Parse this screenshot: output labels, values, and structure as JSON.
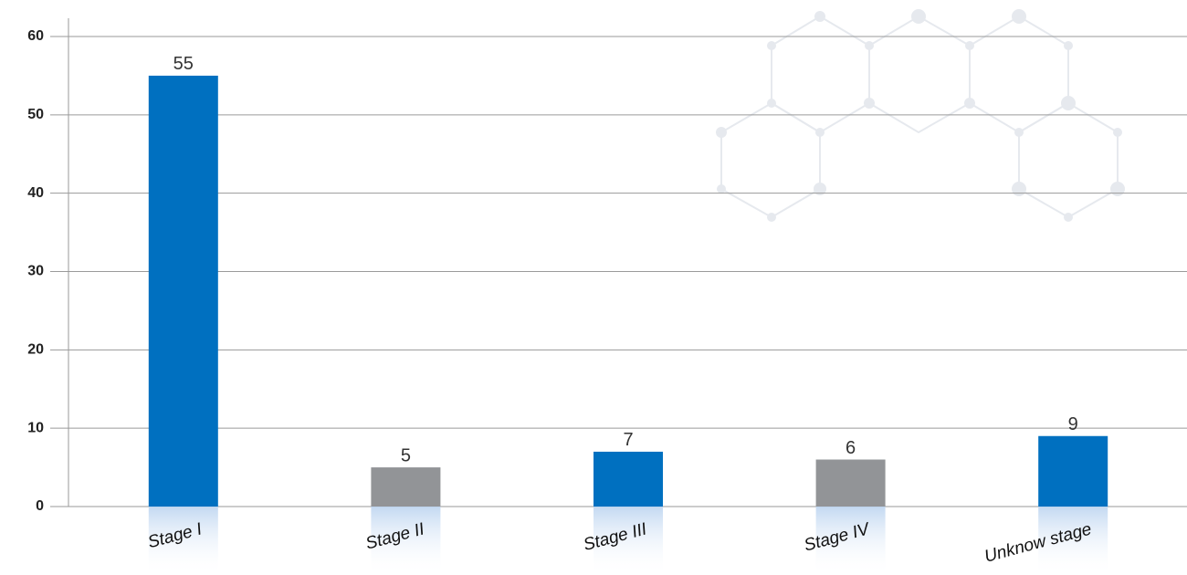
{
  "chart_data": {
    "type": "bar",
    "categories": [
      "Stage I",
      "Stage II",
      "Stage III",
      "Stage IV",
      "Unknow stage"
    ],
    "values": [
      55,
      5,
      7,
      6,
      9
    ],
    "colors": [
      "#0070c0",
      "#929497",
      "#0070c0",
      "#929497",
      "#0070c0"
    ],
    "ylim": [
      0,
      60
    ],
    "yticks": [
      0,
      10,
      20,
      30,
      40,
      50,
      60
    ],
    "grid": true
  }
}
